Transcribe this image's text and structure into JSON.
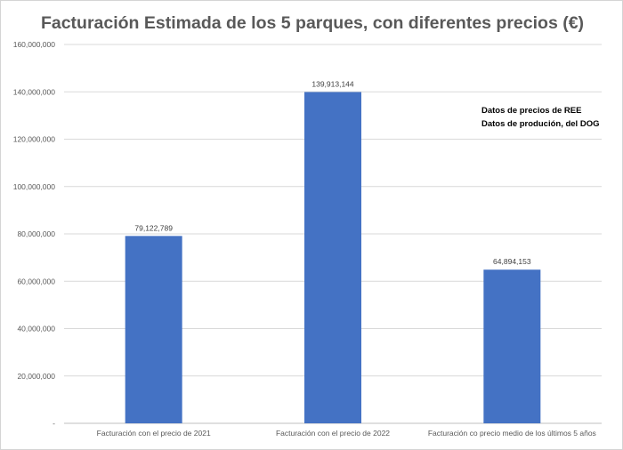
{
  "chart_data": {
    "type": "bar",
    "title": "Facturación Estimada de los 5 parques, con diferentes precios (€)",
    "categories": [
      "Facturación con el precio de 2021",
      "Facturación con el precio de 2022",
      "Facturación co precio medio de los últimos 5 años"
    ],
    "values": [
      79122789,
      139913144,
      64894153
    ],
    "data_labels": [
      "79,122,789",
      "139,913,144",
      "64,894,153"
    ],
    "ylim": [
      0,
      160000000
    ],
    "y_ticks": [
      0,
      20000000,
      40000000,
      60000000,
      80000000,
      100000000,
      120000000,
      140000000,
      160000000
    ],
    "y_tick_labels": [
      "-",
      "20,000,000",
      "40,000,000",
      "60,000,000",
      "80,000,000",
      "100,000,000",
      "120,000,000",
      "140,000,000",
      "160,000,000"
    ],
    "xlabel": "",
    "ylabel": "",
    "grid": true,
    "bar_color": "#4472c4",
    "annotations": [
      "Datos de precios de REE",
      "Datos de produción, del DOG"
    ]
  }
}
